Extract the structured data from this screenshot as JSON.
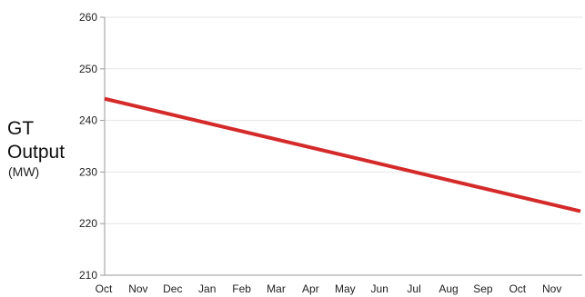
{
  "chart_data": {
    "type": "line",
    "title": "",
    "xlabel": "",
    "ylabel_lines": [
      "GT",
      "Output"
    ],
    "ylabel_unit": "(MW)",
    "categories": [
      "Oct",
      "Nov",
      "Dec",
      "Jan",
      "Feb",
      "Mar",
      "Apr",
      "May",
      "Jun",
      "Jul",
      "Aug",
      "Sep",
      "Oct",
      "Nov"
    ],
    "yticks": [
      210,
      220,
      230,
      240,
      250,
      260
    ],
    "ylim": [
      210,
      260
    ],
    "grid": true,
    "legend": "none",
    "series": [
      {
        "color": "#d42a2a",
        "start_value": 244.2,
        "end_value": 222.4,
        "end_position": "Nov (late)"
      }
    ],
    "colors": {
      "grid": "#e6e6e6",
      "axis": "#9a9a9a"
    }
  }
}
